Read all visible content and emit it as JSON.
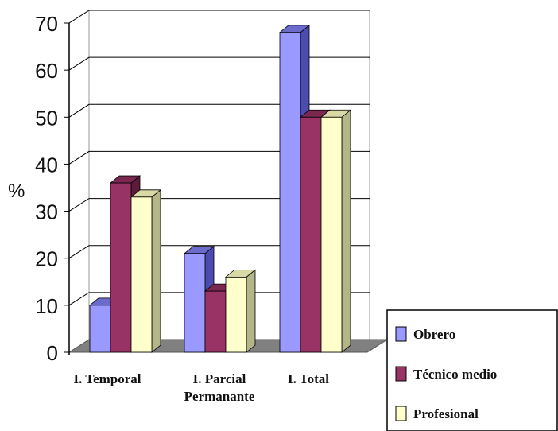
{
  "chart_data": {
    "type": "bar",
    "ylabel": "%",
    "ylim": [
      0,
      70
    ],
    "yticks": [
      "0",
      "10",
      "20",
      "30",
      "40",
      "50",
      "60",
      "70"
    ],
    "categories": [
      "I. Temporal",
      "I. Parcial\nPermanante",
      "I. Total"
    ],
    "series": [
      {
        "name": "Obrero",
        "values": [
          10,
          21,
          68
        ]
      },
      {
        "name": "Técnico medio",
        "values": [
          36,
          13,
          50
        ]
      },
      {
        "name": "Profesional",
        "values": [
          33,
          16,
          50
        ]
      }
    ],
    "grid": true,
    "legend": "bottom-right",
    "colors": {
      "series_front": [
        "#9999ff",
        "#993366",
        "#ffffcc"
      ],
      "series_side": [
        "#4b4bb0",
        "#5a1c3a",
        "#b5b58a"
      ],
      "series_top": [
        "#6b6bcc",
        "#7a2850",
        "#d9d9a6"
      ],
      "floor": "#808080",
      "grid": "#000000"
    }
  }
}
